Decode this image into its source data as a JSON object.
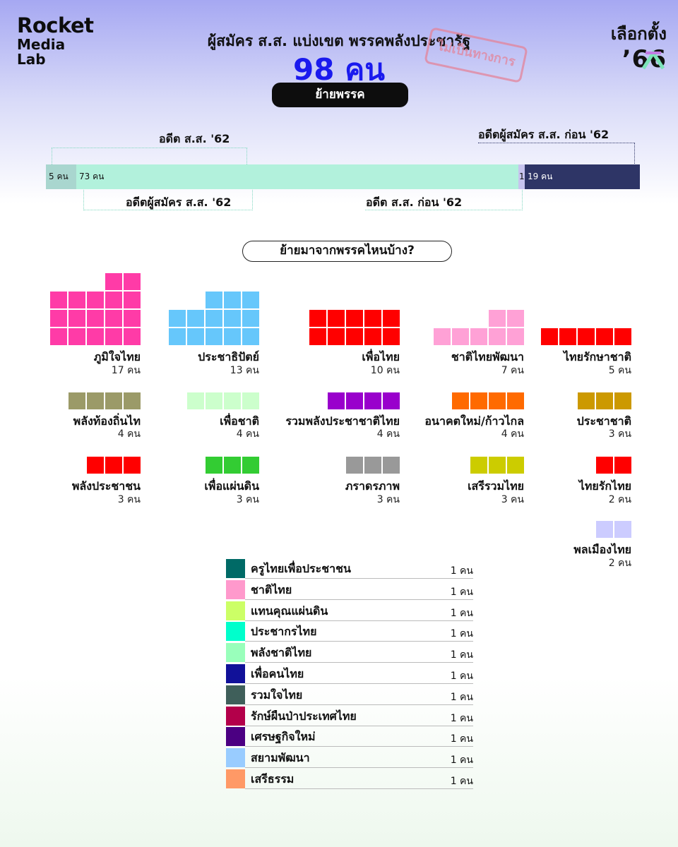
{
  "brand": {
    "line1": "Rocket",
    "line2": "Media",
    "line3": "Lab"
  },
  "logo": {
    "line1": "เลือกตั้ง",
    "line2": "’66"
  },
  "header": {
    "title": "ผู้สมัคร ส.ส. แบ่งเขต พรรคพลังประชารัฐ",
    "total": "98 คน",
    "stamp": "ไม่เป็นทางการ",
    "tag": "ย้ายพรรค"
  },
  "question": "ย้ายมาจากพรรคไหนบ้าง?",
  "colors": {
    "accent": "#1a1aee"
  },
  "chart_data": [
    {
      "type": "bar",
      "orientation": "stacked-horizontal",
      "unit": "คน",
      "total": 98,
      "segments": [
        {
          "value": 5,
          "label": "5 คน",
          "group": "อดีต ส.ส. '62",
          "color": "#a9d6cf"
        },
        {
          "value": 73,
          "label": "73 คน",
          "group": "อดีตผู้สมัคร ส.ส. '62",
          "color": "#b2f1dc"
        },
        {
          "value": 1,
          "label": "1",
          "group": "อดีต ส.ส. ก่อน '62",
          "color": "#c7c4ee"
        },
        {
          "value": 19,
          "label": "19 คน",
          "group": "อดีตผู้สมัคร ส.ส. ก่อน '62",
          "color": "#2e3566"
        }
      ]
    },
    {
      "type": "waffle",
      "unit": "คน",
      "parties": [
        {
          "name": "ภูมิใจไทย",
          "value": 17,
          "count_label": "17 คน",
          "color": "#ff3ba7"
        },
        {
          "name": "ประชาธิปัตย์",
          "value": 13,
          "count_label": "13 คน",
          "color": "#66c7fb"
        },
        {
          "name": "เพื่อไทย",
          "value": 10,
          "count_label": "10 คน",
          "color": "#ff0000"
        },
        {
          "name": "ชาติไทยพัฒนา",
          "value": 7,
          "count_label": "7 คน",
          "color": "#ffa1d6"
        },
        {
          "name": "ไทยรักษาชาติ",
          "value": 5,
          "count_label": "5 คน",
          "color": "#ff0000"
        },
        {
          "name": "พลังท้องถิ่นไท",
          "value": 4,
          "count_label": "4 คน",
          "color": "#9b9a68"
        },
        {
          "name": "เพื่อชาติ",
          "value": 4,
          "count_label": "4 คน",
          "color": "#ccffcc"
        },
        {
          "name": "รวมพลังประชาชาติไทย",
          "value": 4,
          "count_label": "4 คน",
          "color": "#9900cc"
        },
        {
          "name": "อนาคตใหม่/ก้าวไกล",
          "value": 4,
          "count_label": "4 คน",
          "color": "#ff6a00"
        },
        {
          "name": "ประชาชาติ",
          "value": 3,
          "count_label": "3 คน",
          "color": "#cc9900"
        },
        {
          "name": "พลังประชาชน",
          "value": 3,
          "count_label": "3 คน",
          "color": "#ff0000"
        },
        {
          "name": "เพื่อแผ่นดิน",
          "value": 3,
          "count_label": "3 คน",
          "color": "#33cc33"
        },
        {
          "name": "ภราดรภาพ",
          "value": 3,
          "count_label": "3 คน",
          "color": "#999999"
        },
        {
          "name": "เสรีรวมไทย",
          "value": 3,
          "count_label": "3 คน",
          "color": "#cccc00"
        },
        {
          "name": "ไทยรักไทย",
          "value": 2,
          "count_label": "2 คน",
          "color": "#ff0000"
        },
        {
          "name": "พลเมืองไทย",
          "value": 2,
          "count_label": "2 คน",
          "color": "#ccccff"
        }
      ]
    },
    {
      "type": "table",
      "unit": "คน",
      "rows": [
        {
          "name": "ครูไทยเพื่อประชาชน",
          "value": 1,
          "count_label": "1 คน",
          "color": "#006a66"
        },
        {
          "name": "ชาติไทย",
          "value": 1,
          "count_label": "1 คน",
          "color": "#ff99cc"
        },
        {
          "name": "แทนคุณแผ่นดิน",
          "value": 1,
          "count_label": "1 คน",
          "color": "#ccff66"
        },
        {
          "name": "ประชากรไทย",
          "value": 1,
          "count_label": "1 คน",
          "color": "#00ffcc"
        },
        {
          "name": "พลังชาติไทย",
          "value": 1,
          "count_label": "1 คน",
          "color": "#99ffbb"
        },
        {
          "name": "เพื่อคนไทย",
          "value": 1,
          "count_label": "1 คน",
          "color": "#111199"
        },
        {
          "name": "รวมใจไทย",
          "value": 1,
          "count_label": "1 คน",
          "color": "#3f5f5a"
        },
        {
          "name": "รักษ์ผืนป่าประเทศไทย",
          "value": 1,
          "count_label": "1 คน",
          "color": "#b3004a"
        },
        {
          "name": "เศรษฐกิจใหม่",
          "value": 1,
          "count_label": "1 คน",
          "color": "#4b0082"
        },
        {
          "name": "สยามพัฒนา",
          "value": 1,
          "count_label": "1 คน",
          "color": "#99ccff"
        },
        {
          "name": "เสรีธรรม",
          "value": 1,
          "count_label": "1 คน",
          "color": "#ff9966"
        }
      ]
    }
  ]
}
